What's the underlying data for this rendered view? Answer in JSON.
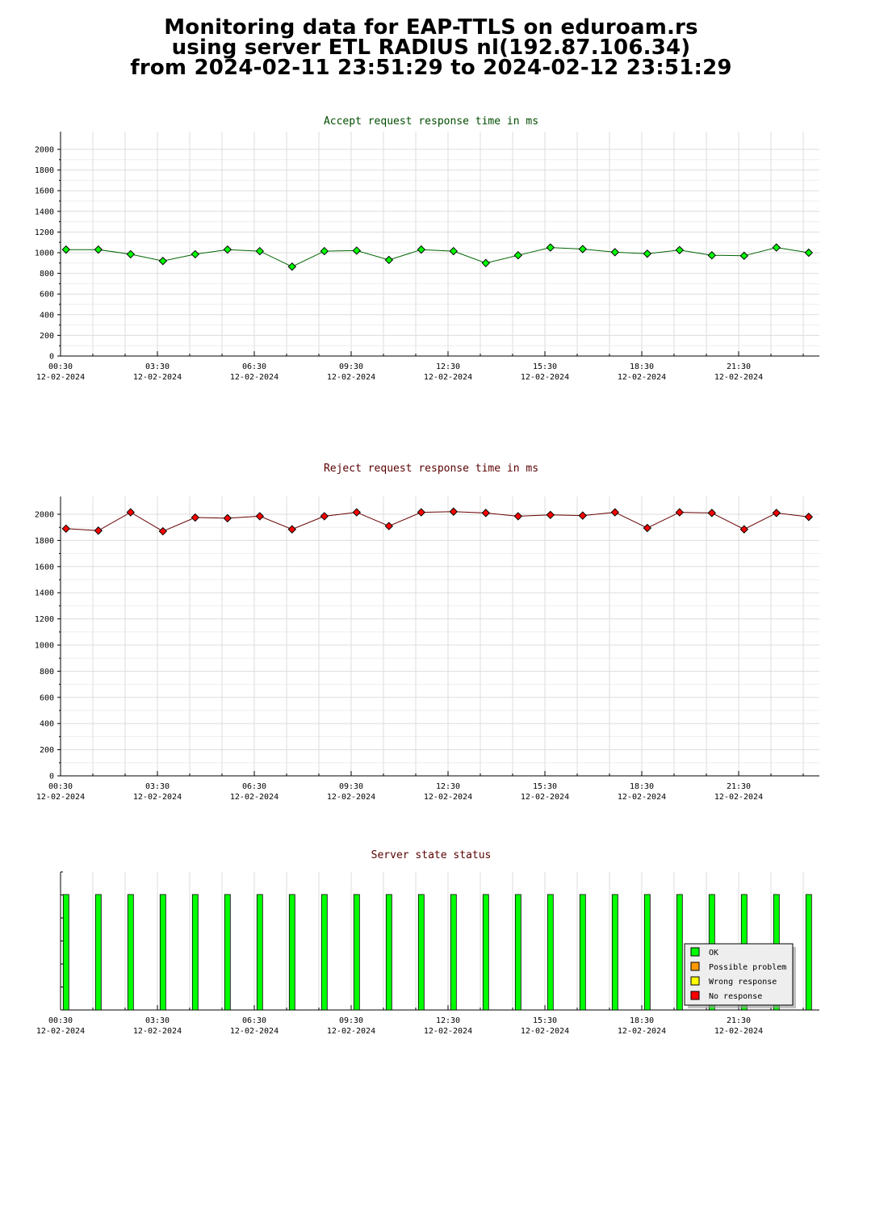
{
  "header": {
    "line1": "Monitoring data for EAP-TTLS on eduroam.rs",
    "line2": "using server ETL RADIUS nl(192.87.106.34)",
    "line3": "from 2024-02-11 23:51:29 to 2024-02-12 23:51:29"
  },
  "colors": {
    "accept_point": "#00ff00",
    "accept_line": "#006400",
    "accept_title": "#004d00",
    "reject_point": "#ff0000",
    "reject_line": "#660000",
    "reject_title": "#5a0000",
    "status_title": "#5a0000",
    "ok": "#00ff00",
    "possible_problem": "#ff9900",
    "wrong_response": "#ffff00",
    "no_response": "#ff0000",
    "grid": "#dddddd"
  },
  "x_ticks": [
    {
      "time": "00:30",
      "date": "12-02-2024",
      "hour": 0.5
    },
    {
      "time": "03:30",
      "date": "12-02-2024",
      "hour": 3.5
    },
    {
      "time": "06:30",
      "date": "12-02-2024",
      "hour": 6.5
    },
    {
      "time": "09:30",
      "date": "12-02-2024",
      "hour": 9.5
    },
    {
      "time": "12:30",
      "date": "12-02-2024",
      "hour": 12.5
    },
    {
      "time": "15:30",
      "date": "12-02-2024",
      "hour": 15.5
    },
    {
      "time": "18:30",
      "date": "12-02-2024",
      "hour": 18.5
    },
    {
      "time": "21:30",
      "date": "12-02-2024",
      "hour": 21.5
    }
  ],
  "chart_data": [
    {
      "type": "line",
      "title": "Accept request response time in ms",
      "x_hours": [
        0.67,
        1.67,
        2.67,
        3.67,
        4.67,
        5.67,
        6.67,
        7.67,
        8.67,
        9.67,
        10.67,
        11.67,
        12.67,
        13.67,
        14.67,
        15.67,
        16.67,
        17.67,
        18.67,
        19.67,
        20.67,
        21.67,
        22.67,
        23.67
      ],
      "values": [
        1030,
        1030,
        985,
        920,
        985,
        1030,
        1015,
        865,
        1015,
        1020,
        930,
        1030,
        1015,
        900,
        975,
        1050,
        1035,
        1005,
        990,
        1025,
        975,
        970,
        1050,
        1000
      ],
      "xlim": [
        0.5,
        24
      ],
      "ylim": [
        0,
        2000
      ],
      "yticks": [
        0,
        200,
        400,
        600,
        800,
        1000,
        1200,
        1400,
        1600,
        1800,
        2000
      ]
    },
    {
      "type": "line",
      "title": "Reject request response time in ms",
      "x_hours": [
        0.67,
        1.67,
        2.67,
        3.67,
        4.67,
        5.67,
        6.67,
        7.67,
        8.67,
        9.67,
        10.67,
        11.67,
        12.67,
        13.67,
        14.67,
        15.67,
        16.67,
        17.67,
        18.67,
        19.67,
        20.67,
        21.67,
        22.67,
        23.67
      ],
      "values": [
        1890,
        1875,
        2015,
        1870,
        1975,
        1970,
        1985,
        1885,
        1985,
        2015,
        1910,
        2015,
        2020,
        2010,
        1985,
        1995,
        1990,
        2015,
        1895,
        2015,
        2010,
        1885,
        2010,
        1980
      ],
      "xlim": [
        0.5,
        24
      ],
      "ylim": [
        0,
        2000
      ],
      "yticks": [
        0,
        200,
        400,
        600,
        800,
        1000,
        1200,
        1400,
        1600,
        1800,
        2000
      ]
    },
    {
      "type": "bar",
      "title": "Server state status",
      "x_hours": [
        0.67,
        1.67,
        2.67,
        3.67,
        4.67,
        5.67,
        6.67,
        7.67,
        8.67,
        9.67,
        10.67,
        11.67,
        12.67,
        13.67,
        14.67,
        15.67,
        16.67,
        17.67,
        18.67,
        19.67,
        20.67,
        21.67,
        22.67,
        23.67
      ],
      "status": [
        "OK",
        "OK",
        "OK",
        "OK",
        "OK",
        "OK",
        "OK",
        "OK",
        "OK",
        "OK",
        "OK",
        "OK",
        "OK",
        "OK",
        "OK",
        "OK",
        "OK",
        "OK",
        "OK",
        "OK",
        "OK",
        "OK",
        "OK",
        "OK"
      ],
      "xlim": [
        0.5,
        24
      ],
      "legend_position": "bottom-right",
      "legend": [
        "OK",
        "Possible problem",
        "Wrong response",
        "No response"
      ]
    }
  ]
}
